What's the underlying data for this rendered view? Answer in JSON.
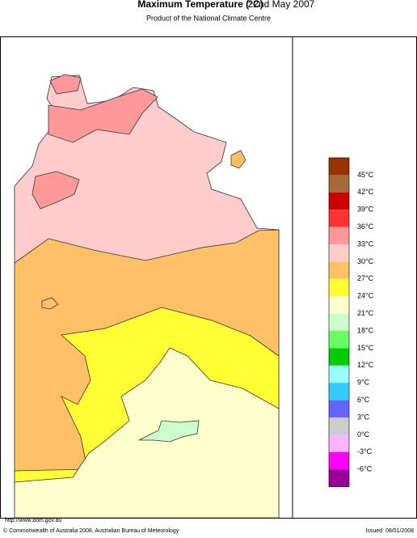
{
  "header": {
    "title": "Maximum Temperature (°C)",
    "date": "22nd May 2007",
    "subtitle": "Product of the National Climate Centre"
  },
  "legend": {
    "colors": [
      "#993300",
      "#a36a3c",
      "#cc0000",
      "#ff3333",
      "#ff9999",
      "#ffcccc",
      "#ffc066",
      "#ffff33",
      "#ffffcc",
      "#ccffcc",
      "#66ff66",
      "#00cc00",
      "#99ffff",
      "#33ccff",
      "#6666ff",
      "#cccccc",
      "#ffb3ff",
      "#ff00ff",
      "#990099"
    ],
    "labels": [
      "45°C",
      "42°C",
      "39°C",
      "36°C",
      "33°C",
      "30°C",
      "27°C",
      "24°C",
      "21°C",
      "18°C",
      "15°C",
      "12°C",
      "9°C",
      "6°C",
      "3°C",
      "0°C",
      "-3°C",
      "-6°C"
    ]
  },
  "footer": {
    "url": "http://www.bom.gov.au",
    "copyright": "© Commonwealth of Australia 2008, Australian Bureau of Meteorology",
    "issued": "Issued: 08/01/2008"
  }
}
